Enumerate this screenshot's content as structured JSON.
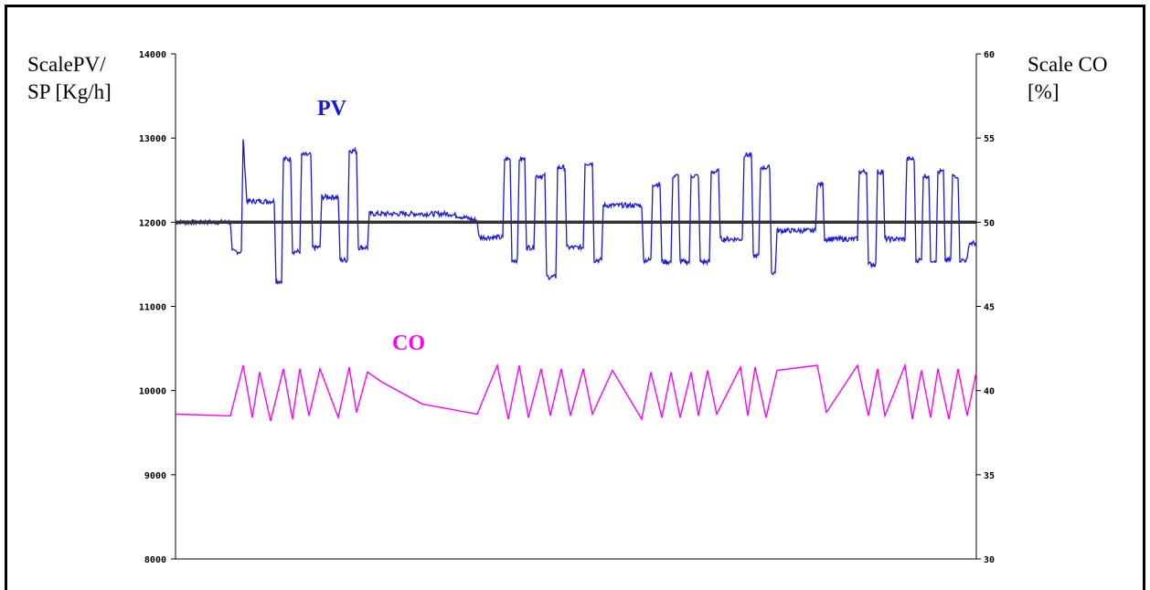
{
  "chart_data": {
    "type": "line",
    "left_axis_label": "ScalePV/ SP [Kg/h]",
    "left_axis_lines": [
      "ScalePV/",
      "SP [Kg/h]"
    ],
    "right_axis_label": "Scale CO [%]",
    "right_axis_lines": [
      "Scale CO",
      "[%]"
    ],
    "left_ylim": [
      8000,
      14000
    ],
    "right_ylim": [
      30,
      60
    ],
    "left_ticks": [
      "14000",
      "13000",
      "12000",
      "11000",
      "10000",
      "9000",
      "8000"
    ],
    "right_ticks": [
      "60",
      "55",
      "50",
      "45",
      "40",
      "35",
      "30"
    ],
    "grid": false,
    "series": [
      {
        "name": "PV",
        "color": "#1818e0",
        "axis": "left",
        "segments": [
          [
            0,
            12000
          ],
          [
            60,
            12000
          ],
          [
            62,
            11650
          ],
          [
            72,
            11650
          ],
          [
            74,
            13000
          ],
          [
            78,
            12250
          ],
          [
            108,
            12250
          ],
          [
            110,
            11300
          ],
          [
            116,
            11300
          ],
          [
            118,
            12750
          ],
          [
            126,
            12750
          ],
          [
            128,
            11650
          ],
          [
            136,
            11650
          ],
          [
            138,
            12800
          ],
          [
            148,
            12800
          ],
          [
            150,
            11700
          ],
          [
            158,
            11700
          ],
          [
            160,
            12300
          ],
          [
            178,
            12300
          ],
          [
            180,
            11550
          ],
          [
            188,
            11550
          ],
          [
            190,
            12850
          ],
          [
            198,
            12850
          ],
          [
            200,
            11700
          ],
          [
            210,
            11700
          ],
          [
            212,
            12100
          ],
          [
            300,
            12100
          ],
          [
            330,
            12020
          ],
          [
            332,
            11820
          ],
          [
            358,
            11820
          ],
          [
            360,
            12750
          ],
          [
            366,
            12750
          ],
          [
            368,
            11550
          ],
          [
            374,
            11550
          ],
          [
            376,
            12750
          ],
          [
            382,
            12750
          ],
          [
            384,
            11700
          ],
          [
            392,
            11700
          ],
          [
            394,
            12550
          ],
          [
            404,
            12550
          ],
          [
            406,
            11350
          ],
          [
            416,
            11350
          ],
          [
            418,
            12650
          ],
          [
            426,
            12650
          ],
          [
            428,
            11700
          ],
          [
            446,
            11700
          ],
          [
            448,
            12700
          ],
          [
            456,
            12700
          ],
          [
            458,
            11550
          ],
          [
            466,
            11550
          ],
          [
            468,
            12200
          ],
          [
            510,
            12200
          ],
          [
            512,
            11550
          ],
          [
            520,
            11550
          ],
          [
            522,
            12450
          ],
          [
            530,
            12450
          ],
          [
            532,
            11530
          ],
          [
            542,
            11530
          ],
          [
            544,
            12550
          ],
          [
            550,
            12550
          ],
          [
            552,
            11530
          ],
          [
            562,
            11530
          ],
          [
            564,
            12550
          ],
          [
            572,
            12550
          ],
          [
            574,
            11530
          ],
          [
            584,
            11530
          ],
          [
            586,
            12600
          ],
          [
            594,
            12600
          ],
          [
            596,
            11800
          ],
          [
            620,
            11800
          ],
          [
            622,
            12800
          ],
          [
            630,
            12800
          ],
          [
            632,
            11600
          ],
          [
            638,
            11600
          ],
          [
            640,
            12650
          ],
          [
            650,
            12650
          ],
          [
            652,
            11400
          ],
          [
            656,
            11400
          ],
          [
            658,
            11900
          ],
          [
            700,
            11900
          ],
          [
            702,
            12450
          ],
          [
            708,
            12450
          ],
          [
            710,
            11800
          ],
          [
            746,
            11800
          ],
          [
            748,
            12600
          ],
          [
            756,
            12600
          ],
          [
            758,
            11500
          ],
          [
            766,
            11500
          ],
          [
            768,
            12600
          ],
          [
            774,
            12600
          ],
          [
            776,
            11800
          ],
          [
            798,
            11800
          ],
          [
            800,
            12750
          ],
          [
            808,
            12750
          ],
          [
            810,
            11550
          ],
          [
            816,
            11550
          ],
          [
            818,
            12550
          ],
          [
            824,
            12550
          ],
          [
            826,
            11550
          ],
          [
            832,
            11550
          ],
          [
            834,
            12600
          ],
          [
            840,
            12600
          ],
          [
            842,
            11550
          ],
          [
            848,
            11550
          ],
          [
            850,
            12550
          ],
          [
            856,
            12550
          ],
          [
            858,
            11550
          ],
          [
            866,
            11550
          ],
          [
            868,
            11750
          ],
          [
            876,
            11750
          ]
        ]
      },
      {
        "name": "CO",
        "color": "#ff00ff",
        "axis": "right",
        "segments": [
          [
            0,
            38.6
          ],
          [
            60,
            38.5
          ],
          [
            74,
            41.5
          ],
          [
            84,
            38.4
          ],
          [
            92,
            41.1
          ],
          [
            104,
            38.2
          ],
          [
            118,
            41.3
          ],
          [
            128,
            38.3
          ],
          [
            136,
            41.3
          ],
          [
            146,
            38.5
          ],
          [
            158,
            41.3
          ],
          [
            178,
            38.4
          ],
          [
            190,
            41.4
          ],
          [
            198,
            38.7
          ],
          [
            210,
            41.1
          ],
          [
            226,
            40.5
          ],
          [
            270,
            39.2
          ],
          [
            330,
            38.6
          ],
          [
            352,
            41.5
          ],
          [
            364,
            38.3
          ],
          [
            376,
            41.5
          ],
          [
            386,
            38.4
          ],
          [
            400,
            41.3
          ],
          [
            410,
            38.5
          ],
          [
            422,
            41.3
          ],
          [
            432,
            38.5
          ],
          [
            446,
            41.3
          ],
          [
            456,
            38.6
          ],
          [
            478,
            41.2
          ],
          [
            510,
            38.3
          ],
          [
            520,
            41.1
          ],
          [
            532,
            38.4
          ],
          [
            542,
            41.1
          ],
          [
            552,
            38.4
          ],
          [
            564,
            41.1
          ],
          [
            572,
            38.5
          ],
          [
            582,
            41.2
          ],
          [
            592,
            38.6
          ],
          [
            618,
            41.4
          ],
          [
            626,
            38.5
          ],
          [
            634,
            41.4
          ],
          [
            646,
            38.4
          ],
          [
            658,
            41.2
          ],
          [
            702,
            41.5
          ],
          [
            712,
            38.7
          ],
          [
            746,
            41.5
          ],
          [
            758,
            38.5
          ],
          [
            768,
            41.3
          ],
          [
            776,
            38.5
          ],
          [
            798,
            41.5
          ],
          [
            806,
            38.3
          ],
          [
            816,
            41.2
          ],
          [
            826,
            38.4
          ],
          [
            834,
            41.3
          ],
          [
            846,
            38.3
          ],
          [
            856,
            41.3
          ],
          [
            866,
            38.5
          ],
          [
            876,
            41.1
          ]
        ]
      },
      {
        "name": "SP",
        "color": "#333333",
        "axis": "left",
        "segments": [
          [
            0,
            12000
          ],
          [
            876,
            12000
          ]
        ]
      }
    ],
    "annotations": [
      {
        "text": "PV",
        "color": "#1818e0"
      },
      {
        "text": "CO",
        "color": "#ff00ff"
      }
    ]
  }
}
